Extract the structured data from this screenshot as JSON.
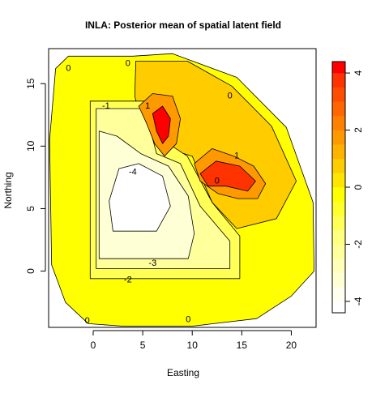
{
  "chart_data": {
    "type": "heatmap",
    "subtype": "filled-contour",
    "title": "INLA: Posterior mean of spatial latent field",
    "xlabel": "Easting",
    "ylabel": "Northing",
    "xlim": [
      -4.5,
      22.5
    ],
    "ylim": [
      -4.5,
      17.8
    ],
    "x_ticks": [
      0,
      5,
      10,
      15,
      20
    ],
    "y_ticks": [
      0,
      5,
      10,
      15
    ],
    "x_tick_labels": [
      "0",
      "5",
      "10",
      "15",
      "20"
    ],
    "y_tick_labels": [
      "0",
      "5",
      "10",
      "15"
    ],
    "colorbar": {
      "min": -4.4,
      "max": 4.4,
      "ticks": [
        4,
        2,
        0,
        -2,
        -4
      ],
      "tick_labels": [
        "4",
        "2",
        "0",
        "-2",
        "-4"
      ],
      "bands": [
        {
          "from": -4.4,
          "to": -4.0,
          "color": "#ffffff"
        },
        {
          "from": -4.0,
          "to": -3.5,
          "color": "#fffff0"
        },
        {
          "from": -3.5,
          "to": -3.0,
          "color": "#ffffd5"
        },
        {
          "from": -3.0,
          "to": -2.5,
          "color": "#ffffb9"
        },
        {
          "from": -2.5,
          "to": -2.0,
          "color": "#ffff9c"
        },
        {
          "from": -2.0,
          "to": -1.5,
          "color": "#ffff80"
        },
        {
          "from": -1.5,
          "to": -1.0,
          "color": "#ffff55"
        },
        {
          "from": -1.0,
          "to": -0.5,
          "color": "#ffff2b"
        },
        {
          "from": -0.5,
          "to": 0.0,
          "color": "#ffff00"
        },
        {
          "from": 0.0,
          "to": 0.5,
          "color": "#ffe600"
        },
        {
          "from": 0.5,
          "to": 1.0,
          "color": "#ffcc00"
        },
        {
          "from": 1.0,
          "to": 1.5,
          "color": "#ffb300"
        },
        {
          "from": 1.5,
          "to": 2.0,
          "color": "#ff9900"
        },
        {
          "from": 2.0,
          "to": 2.5,
          "color": "#ff8000"
        },
        {
          "from": 2.5,
          "to": 3.0,
          "color": "#ff6600"
        },
        {
          "from": 3.0,
          "to": 3.5,
          "color": "#ff4d00"
        },
        {
          "from": 3.5,
          "to": 4.0,
          "color": "#ff3300"
        },
        {
          "from": 4.0,
          "to": 4.4,
          "color": "#ff0000"
        }
      ]
    },
    "field_regions": [
      {
        "name": "outer-mesh-domain",
        "value": -0.3,
        "polygon": [
          [
            -3.8,
            16.2
          ],
          [
            -2.5,
            17.2
          ],
          [
            4,
            17.2
          ],
          [
            8,
            17.4
          ],
          [
            14.5,
            15.5
          ],
          [
            19.5,
            11.5
          ],
          [
            22.2,
            5.5
          ],
          [
            22.3,
            0
          ],
          [
            20,
            -2
          ],
          [
            16.5,
            -3.8
          ],
          [
            10,
            -4.4
          ],
          [
            3,
            -4.4
          ],
          [
            -0.5,
            -4.2
          ],
          [
            -2.8,
            -2.5
          ],
          [
            -4.2,
            0.5
          ],
          [
            -4.4,
            10.5
          ]
        ]
      },
      {
        "name": "north-east-raised-region",
        "value": 0.7,
        "polygon": [
          [
            4.3,
            16.8
          ],
          [
            9.5,
            16.8
          ],
          [
            14,
            14.8
          ],
          [
            18,
            11.6
          ],
          [
            20.5,
            7.2
          ],
          [
            18.5,
            4.2
          ],
          [
            14.5,
            3.4
          ],
          [
            12,
            5.5
          ],
          [
            10,
            9.2
          ],
          [
            7.5,
            9.8
          ],
          [
            5,
            11.5
          ],
          [
            4.2,
            14
          ]
        ]
      },
      {
        "name": "inner-rectangle-border",
        "value": -1.0,
        "polygon": [
          [
            -0.3,
            -0.6
          ],
          [
            14.8,
            -0.6
          ],
          [
            14.8,
            2.8
          ],
          [
            12,
            5.5
          ],
          [
            9.5,
            9.2
          ],
          [
            7.2,
            10.4
          ],
          [
            6.6,
            12.4
          ],
          [
            6.4,
            13.6
          ],
          [
            -0.3,
            13.6
          ]
        ]
      },
      {
        "name": "inner-rectangle-field",
        "value": -2.4,
        "polygon": [
          [
            0.3,
            0.2
          ],
          [
            13.8,
            0.2
          ],
          [
            13.8,
            2.4
          ],
          [
            10.8,
            5.2
          ],
          [
            8.8,
            8.6
          ],
          [
            6.4,
            9.4
          ],
          [
            5.6,
            11.8
          ],
          [
            5.4,
            13
          ],
          [
            0.3,
            13
          ]
        ]
      },
      {
        "name": "low-west-basin",
        "value": -3.2,
        "polygon": [
          [
            0.6,
            1
          ],
          [
            9.6,
            1
          ],
          [
            10.2,
            3
          ],
          [
            9.6,
            6
          ],
          [
            7.6,
            8.4
          ],
          [
            4.8,
            9.4
          ],
          [
            2.4,
            10.8
          ],
          [
            0.6,
            11.2
          ]
        ]
      },
      {
        "name": "minimum-core",
        "value": -4.0,
        "polygon": [
          [
            2,
            3.2
          ],
          [
            6.4,
            3.2
          ],
          [
            7.8,
            5.2
          ],
          [
            7,
            7.6
          ],
          [
            4.6,
            8.6
          ],
          [
            2.6,
            8.2
          ],
          [
            1.6,
            5.6
          ]
        ]
      },
      {
        "name": "north-hotspot-halo",
        "value": 2.0,
        "polygon": [
          [
            4.6,
            13.2
          ],
          [
            6,
            14.2
          ],
          [
            8,
            14
          ],
          [
            8.8,
            12.2
          ],
          [
            8.4,
            10.2
          ],
          [
            7.2,
            9.2
          ],
          [
            6.2,
            10.2
          ],
          [
            5.4,
            11.8
          ]
        ]
      },
      {
        "name": "north-hotspot-core",
        "value": 4.2,
        "polygon": [
          [
            6,
            12.6
          ],
          [
            7,
            13.2
          ],
          [
            7.8,
            12.2
          ],
          [
            7.6,
            10.8
          ],
          [
            7,
            10.2
          ],
          [
            6.4,
            11.2
          ]
        ]
      },
      {
        "name": "east-hotspot-halo",
        "value": 2.0,
        "polygon": [
          [
            10.2,
            8.6
          ],
          [
            12,
            9.8
          ],
          [
            14.2,
            9.2
          ],
          [
            16.2,
            8.4
          ],
          [
            17.4,
            7
          ],
          [
            16.6,
            5.8
          ],
          [
            14.6,
            5.8
          ],
          [
            12.6,
            6.2
          ],
          [
            10.8,
            7.2
          ]
        ]
      },
      {
        "name": "east-hotspot-core",
        "value": 4.0,
        "polygon": [
          [
            10.8,
            7.8
          ],
          [
            12.4,
            8.8
          ],
          [
            14.8,
            8.4
          ],
          [
            16.4,
            7.2
          ],
          [
            15.6,
            6.4
          ],
          [
            13.4,
            6.8
          ],
          [
            11.6,
            6.8
          ]
        ]
      }
    ],
    "contour_labels": [
      {
        "text": "0",
        "x": -2.5,
        "y": 16.2
      },
      {
        "text": "0",
        "x": 3.5,
        "y": 16.6
      },
      {
        "text": "0",
        "x": 12.5,
        "y": 7.2
      },
      {
        "text": "0",
        "x": 13.8,
        "y": 14
      },
      {
        "text": "1",
        "x": 5.5,
        "y": 13.2
      },
      {
        "text": "1",
        "x": 14.5,
        "y": 9.2
      },
      {
        "text": "-1",
        "x": 1.3,
        "y": 13.2
      },
      {
        "text": "-2",
        "x": 3.5,
        "y": -0.7
      },
      {
        "text": "-3",
        "x": 6.0,
        "y": 0.6
      },
      {
        "text": "-4",
        "x": 4.0,
        "y": 7.9
      },
      {
        "text": "0",
        "x": -0.6,
        "y": -4.0
      },
      {
        "text": "0",
        "x": 9.6,
        "y": -3.9
      }
    ]
  }
}
